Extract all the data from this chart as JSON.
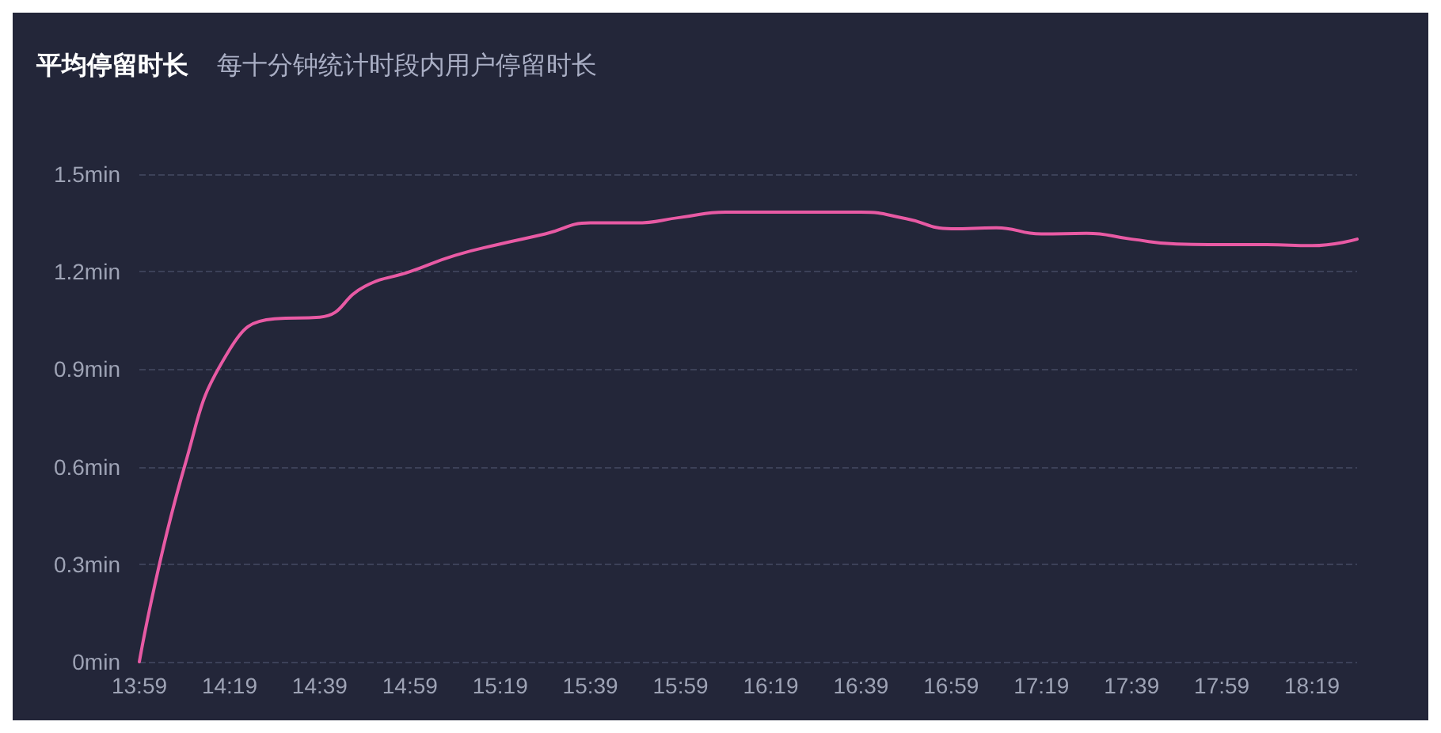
{
  "chart_data": {
    "type": "line",
    "title": "平均停留时长",
    "subtitle": "每十分钟统计时段内用户停留时长",
    "categories": [
      "13:59",
      null,
      "14:19",
      null,
      "14:39",
      null,
      "14:59",
      null,
      "15:19",
      null,
      "15:39",
      null,
      "15:59",
      null,
      "16:19",
      null,
      "16:39",
      null,
      "16:59",
      null,
      "17:19",
      null,
      "17:39",
      null,
      "17:59",
      null,
      "18:19",
      null
    ],
    "series": [
      {
        "color": "#e85aa4",
        "values": [
          0,
          0.6,
          0.96,
          1.055,
          1.06,
          1.155,
          1.2,
          1.25,
          1.285,
          1.316,
          1.35,
          1.35,
          1.367,
          1.383,
          1.383,
          1.383,
          1.383,
          1.363,
          1.332,
          1.335,
          1.316,
          1.318,
          1.3,
          1.285,
          1.283,
          1.283,
          1.28,
          1.3
        ]
      }
    ],
    "ylim": [
      0,
      1.5
    ],
    "yticks": [
      {
        "value": 0,
        "label": "0min"
      },
      {
        "value": 0.3,
        "label": "0.3min"
      },
      {
        "value": 0.6,
        "label": "0.6min"
      },
      {
        "value": 0.9,
        "label": "0.9min"
      },
      {
        "value": 1.2,
        "label": "1.2min"
      },
      {
        "value": 1.5,
        "label": "1.5min"
      }
    ],
    "grid": "y",
    "marker": "none",
    "line_style": "solid"
  }
}
